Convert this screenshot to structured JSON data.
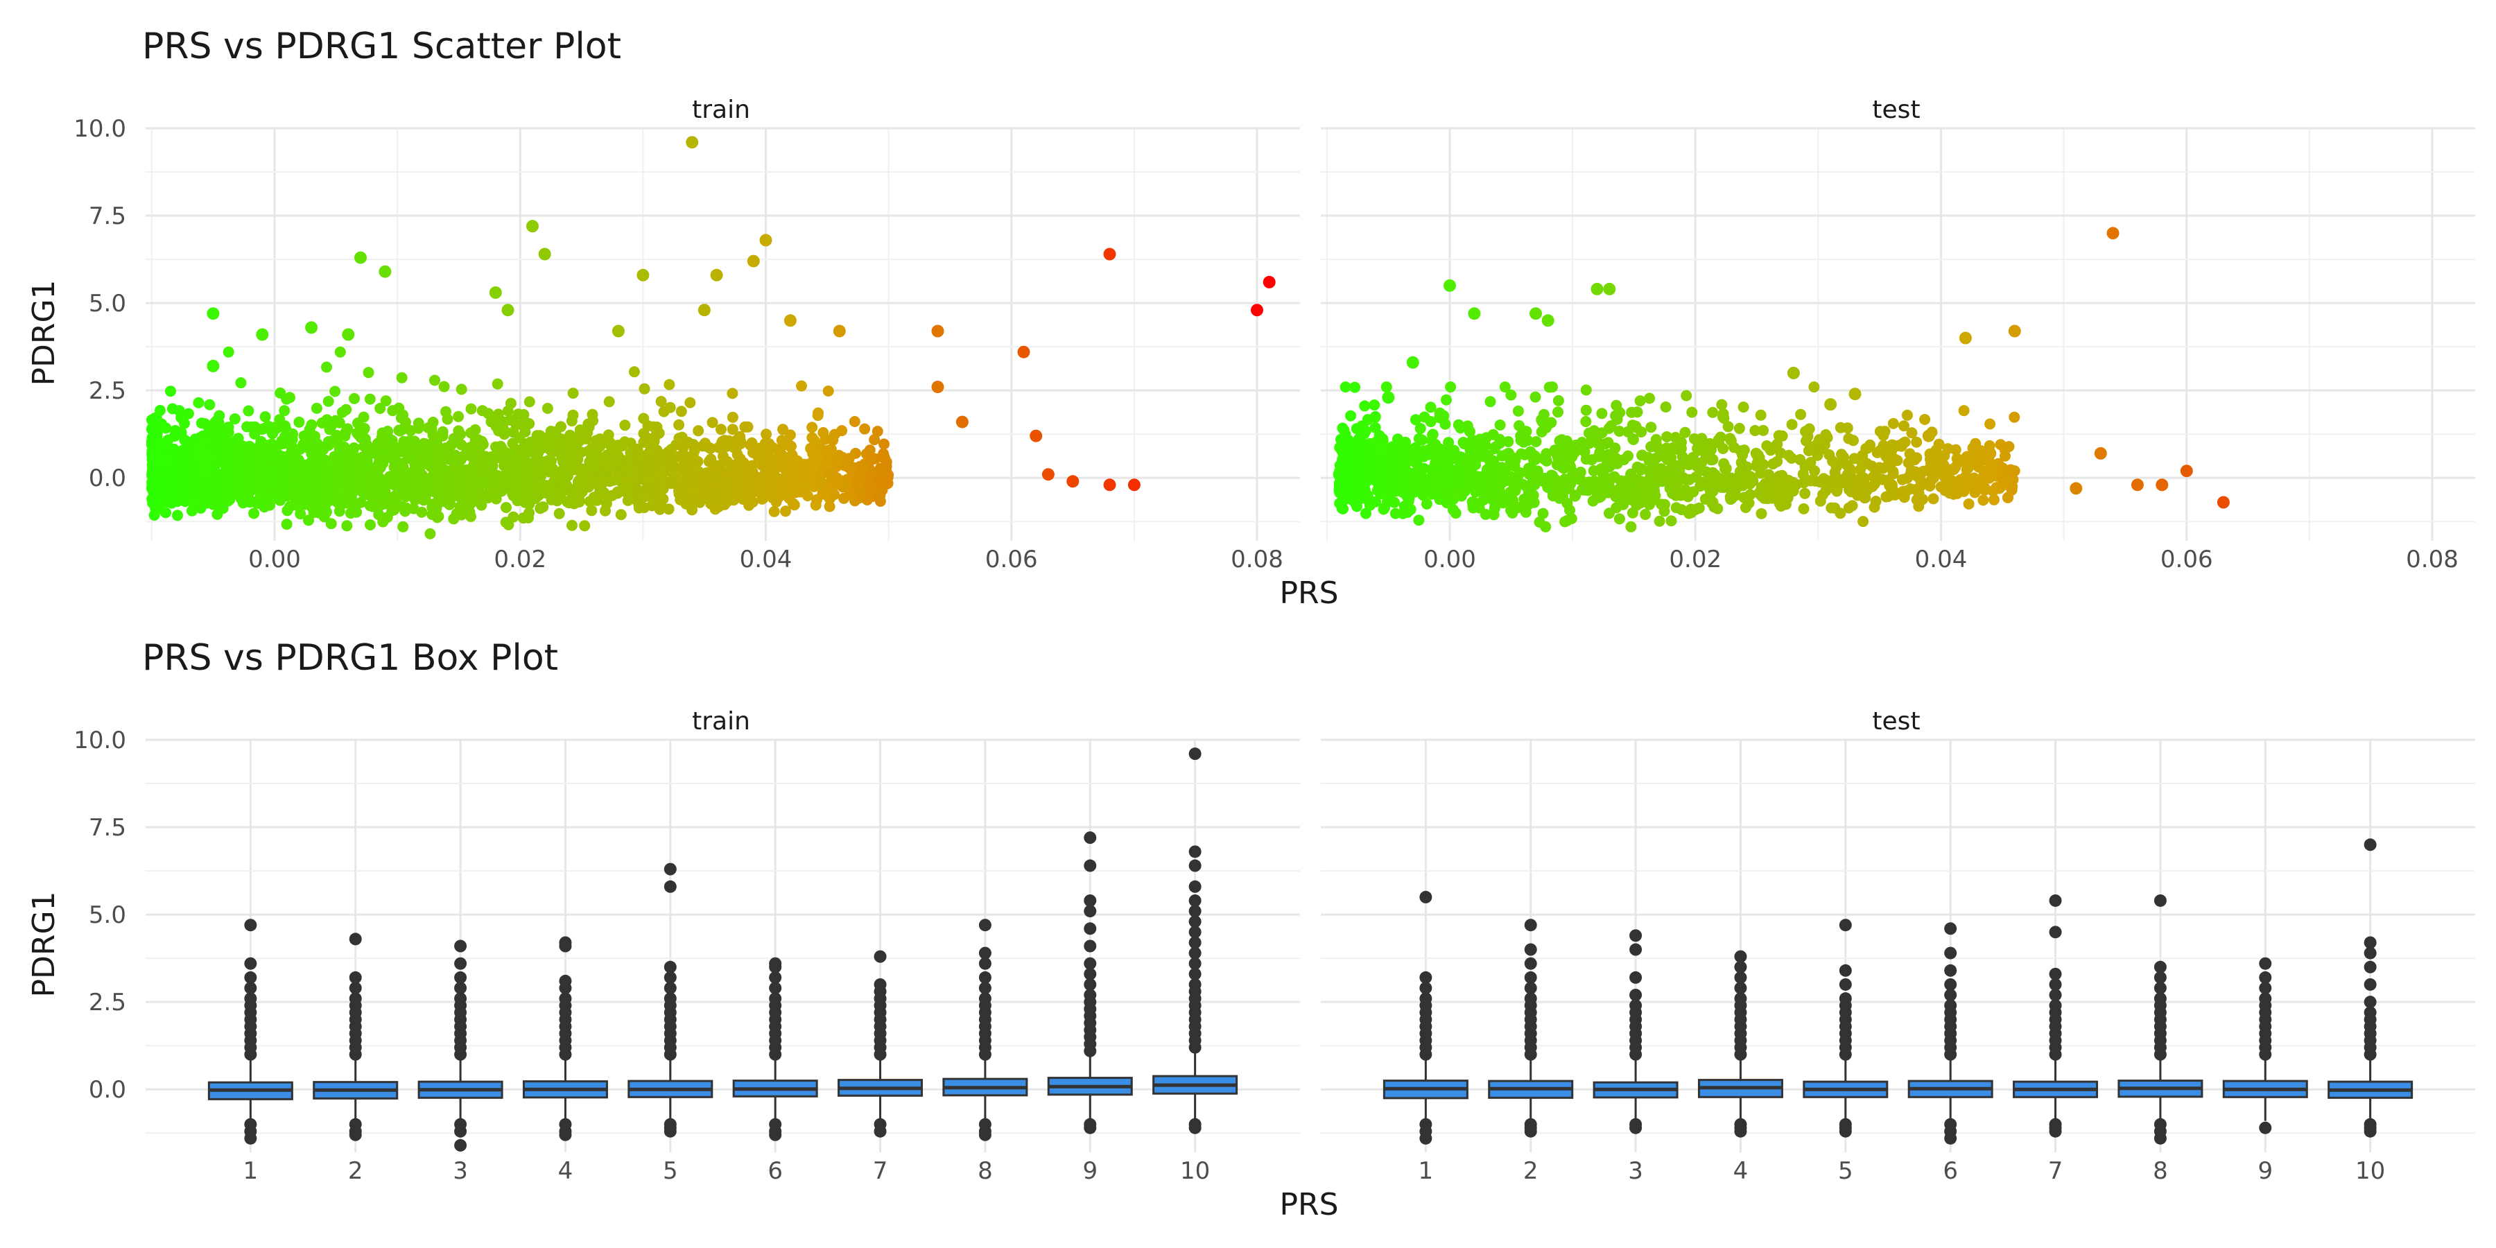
{
  "chart_data": [
    {
      "type": "scatter",
      "title": "PRS vs PDRG1 Scatter Plot",
      "xlabel": "PRS",
      "ylabel": "PDRG1",
      "xlim": [
        -0.0105,
        0.0835
      ],
      "ylim": [
        -1.8,
        10.0
      ],
      "xticks": [
        "0.00",
        "0.02",
        "0.04",
        "0.06",
        "0.08"
      ],
      "yticks": [
        "0.0",
        "2.5",
        "5.0",
        "7.5",
        "10.0"
      ],
      "grid": true,
      "legend": "none",
      "color_scale": {
        "low": "#2EFF00",
        "mid": "#D4A400",
        "high": "#FF0000",
        "domain": [
          -0.01,
          0.08
        ]
      },
      "facets": [
        "train",
        "test"
      ],
      "bulk": {
        "train": {
          "x_range": [
            -0.01,
            0.05
          ],
          "y_range": [
            -1.6,
            3.6
          ],
          "n": 2600
        },
        "test": {
          "x_range": [
            -0.009,
            0.046
          ],
          "y_range": [
            -1.4,
            2.6
          ],
          "n": 1400
        }
      },
      "series": [
        {
          "name": "train",
          "x": [
            0.034,
            0.021,
            0.022,
            0.039,
            0.007,
            0.009,
            0.068,
            0.081,
            0.08,
            0.04,
            0.03,
            0.036,
            0.035,
            0.042,
            0.046,
            0.054,
            0.061,
            0.054,
            0.056,
            0.062,
            0.028,
            0.019,
            0.018,
            -0.005,
            -0.005,
            -0.001,
            0.003,
            0.006,
            0.065,
            0.07,
            0.068,
            0.063
          ],
          "y": [
            9.6,
            7.2,
            6.4,
            6.2,
            6.3,
            5.9,
            6.4,
            5.6,
            4.8,
            6.8,
            5.8,
            5.8,
            4.8,
            4.5,
            4.2,
            4.2,
            3.6,
            2.6,
            1.6,
            1.2,
            4.2,
            4.8,
            5.3,
            4.7,
            3.2,
            4.1,
            4.3,
            4.1,
            -0.1,
            -0.2,
            -0.2,
            0.1
          ]
        },
        {
          "name": "test",
          "x": [
            0.054,
            0.046,
            0.042,
            0.063,
            0.06,
            0.058,
            0.056,
            0.053,
            0.051,
            0.0,
            0.013,
            0.012,
            0.002,
            0.007,
            0.008,
            0.028,
            0.031,
            0.033,
            0.039,
            0.044,
            -0.005,
            -0.003,
            -0.009
          ],
          "y": [
            7.0,
            4.2,
            4.0,
            -0.7,
            0.2,
            -0.2,
            -0.2,
            0.7,
            -0.3,
            5.5,
            5.4,
            5.4,
            4.7,
            4.7,
            4.5,
            3.0,
            2.1,
            2.4,
            1.2,
            0.7,
            2.3,
            3.3,
            0.1
          ]
        }
      ]
    },
    {
      "type": "box",
      "title": "PRS vs PDRG1 Box Plot",
      "xlabel": "PRS",
      "ylabel": "PDRG1",
      "ylim": [
        -1.8,
        10.0
      ],
      "yticks": [
        "0.0",
        "2.5",
        "5.0",
        "7.5",
        "10.0"
      ],
      "categories": [
        "1",
        "2",
        "3",
        "4",
        "5",
        "6",
        "7",
        "8",
        "9",
        "10"
      ],
      "grid": true,
      "legend": "none",
      "box_fill": "#3A8EE6",
      "facets": [
        "train",
        "test"
      ],
      "series": [
        {
          "name": "train",
          "q1": [
            -0.28,
            -0.26,
            -0.24,
            -0.23,
            -0.22,
            -0.2,
            -0.18,
            -0.17,
            -0.15,
            -0.12
          ],
          "median": [
            -0.02,
            -0.02,
            -0.01,
            0.0,
            0.0,
            0.01,
            0.03,
            0.05,
            0.08,
            0.12
          ],
          "q3": [
            0.2,
            0.21,
            0.22,
            0.23,
            0.24,
            0.25,
            0.27,
            0.3,
            0.33,
            0.38
          ],
          "whisker_low": [
            -0.95,
            -0.95,
            -0.95,
            -0.95,
            -0.95,
            -0.95,
            -0.9,
            -0.9,
            -0.88,
            -0.85
          ],
          "whisker_high": [
            0.9,
            0.9,
            0.9,
            0.92,
            0.92,
            0.95,
            1.0,
            1.0,
            1.05,
            1.15
          ],
          "outlier_high": [
            [
              1.0,
              1.2,
              1.4,
              1.6,
              1.8,
              2.0,
              2.2,
              2.4,
              2.6,
              2.9,
              3.2,
              3.6,
              4.7
            ],
            [
              1.0,
              1.2,
              1.4,
              1.6,
              1.8,
              2.0,
              2.2,
              2.4,
              2.6,
              2.9,
              3.2,
              4.3
            ],
            [
              1.0,
              1.2,
              1.4,
              1.6,
              1.8,
              2.0,
              2.2,
              2.4,
              2.6,
              2.9,
              3.2,
              3.6,
              4.1
            ],
            [
              1.0,
              1.2,
              1.4,
              1.6,
              1.8,
              2.0,
              2.2,
              2.4,
              2.6,
              2.9,
              3.1,
              4.1,
              4.2
            ],
            [
              1.0,
              1.2,
              1.4,
              1.6,
              1.8,
              2.0,
              2.2,
              2.4,
              2.6,
              2.9,
              3.2,
              3.5,
              5.8,
              6.3
            ],
            [
              1.0,
              1.2,
              1.4,
              1.6,
              1.8,
              2.0,
              2.2,
              2.4,
              2.6,
              2.9,
              3.2,
              3.5,
              3.6
            ],
            [
              1.0,
              1.2,
              1.4,
              1.6,
              1.8,
              2.0,
              2.2,
              2.4,
              2.6,
              2.8,
              3.0,
              3.8
            ],
            [
              1.0,
              1.2,
              1.4,
              1.6,
              1.8,
              2.0,
              2.2,
              2.4,
              2.6,
              2.9,
              3.2,
              3.6,
              3.9,
              4.7
            ],
            [
              1.1,
              1.3,
              1.5,
              1.7,
              1.9,
              2.1,
              2.3,
              2.5,
              2.7,
              3.0,
              3.3,
              3.6,
              4.1,
              4.6,
              5.1,
              5.4,
              6.4,
              7.2
            ],
            [
              1.2,
              1.4,
              1.6,
              1.8,
              2.0,
              2.2,
              2.4,
              2.6,
              2.8,
              3.0,
              3.3,
              3.6,
              3.9,
              4.2,
              4.5,
              4.8,
              5.1,
              5.4,
              5.8,
              6.4,
              6.8,
              9.6
            ]
          ],
          "outlier_low": [
            [
              -1.0,
              -1.2,
              -1.4
            ],
            [
              -1.0,
              -1.2,
              -1.3
            ],
            [
              -1.0,
              -1.2,
              -1.6
            ],
            [
              -1.0,
              -1.2,
              -1.3
            ],
            [
              -1.0,
              -1.1,
              -1.2
            ],
            [
              -1.0,
              -1.2,
              -1.3
            ],
            [
              -1.0,
              -1.2
            ],
            [
              -1.0,
              -1.2,
              -1.3
            ],
            [
              -1.0,
              -1.1
            ],
            [
              -1.0,
              -1.1
            ]
          ]
        },
        {
          "name": "test",
          "q1": [
            -0.25,
            -0.24,
            -0.23,
            -0.22,
            -0.22,
            -0.22,
            -0.22,
            -0.21,
            -0.22,
            -0.24
          ],
          "median": [
            0.02,
            0.02,
            0.0,
            0.05,
            0.0,
            0.02,
            0.0,
            0.03,
            0.0,
            -0.02
          ],
          "q3": [
            0.25,
            0.24,
            0.2,
            0.27,
            0.22,
            0.24,
            0.22,
            0.25,
            0.24,
            0.22
          ],
          "whisker_low": [
            -0.9,
            -0.9,
            -0.88,
            -0.9,
            -0.9,
            -0.9,
            -0.9,
            -0.9,
            -0.9,
            -0.9
          ],
          "whisker_high": [
            0.95,
            0.95,
            0.9,
            0.95,
            0.9,
            0.95,
            0.9,
            0.95,
            0.92,
            0.9
          ],
          "outlier_high": [
            [
              1.0,
              1.2,
              1.4,
              1.6,
              1.8,
              2.0,
              2.2,
              2.4,
              2.6,
              2.9,
              3.2,
              5.5
            ],
            [
              1.0,
              1.2,
              1.4,
              1.6,
              1.8,
              2.0,
              2.2,
              2.4,
              2.6,
              2.9,
              3.2,
              3.6,
              4.0,
              4.7
            ],
            [
              1.0,
              1.2,
              1.4,
              1.6,
              1.8,
              2.0,
              2.2,
              2.4,
              2.7,
              3.2,
              4.0,
              4.4
            ],
            [
              1.0,
              1.2,
              1.4,
              1.6,
              1.8,
              2.0,
              2.2,
              2.4,
              2.6,
              2.9,
              3.2,
              3.5,
              3.8
            ],
            [
              1.0,
              1.2,
              1.4,
              1.6,
              1.8,
              2.0,
              2.2,
              2.4,
              2.6,
              3.0,
              3.4,
              4.7
            ],
            [
              1.0,
              1.2,
              1.4,
              1.6,
              1.8,
              2.0,
              2.2,
              2.4,
              2.7,
              3.0,
              3.4,
              3.9,
              4.6
            ],
            [
              1.0,
              1.2,
              1.4,
              1.6,
              1.8,
              2.0,
              2.2,
              2.4,
              2.7,
              3.0,
              3.3,
              4.5,
              5.4
            ],
            [
              1.0,
              1.2,
              1.4,
              1.6,
              1.8,
              2.0,
              2.2,
              2.4,
              2.6,
              2.9,
              3.2,
              3.5,
              5.4
            ],
            [
              1.0,
              1.2,
              1.4,
              1.6,
              1.8,
              2.0,
              2.2,
              2.4,
              2.6,
              2.9,
              3.2,
              3.6
            ],
            [
              1.0,
              1.2,
              1.4,
              1.6,
              1.8,
              2.0,
              2.2,
              2.5,
              3.0,
              3.5,
              3.9,
              4.2,
              7.0
            ]
          ],
          "outlier_low": [
            [
              -1.0,
              -1.2,
              -1.4
            ],
            [
              -1.0,
              -1.1,
              -1.2
            ],
            [
              -1.0,
              -1.1
            ],
            [
              -1.0,
              -1.1,
              -1.2
            ],
            [
              -1.0,
              -1.1,
              -1.2
            ],
            [
              -1.0,
              -1.2,
              -1.4
            ],
            [
              -1.0,
              -1.1,
              -1.2
            ],
            [
              -1.0,
              -1.2,
              -1.4
            ],
            [
              -1.1
            ],
            [
              -1.0,
              -1.1,
              -1.2
            ]
          ]
        }
      ]
    }
  ]
}
